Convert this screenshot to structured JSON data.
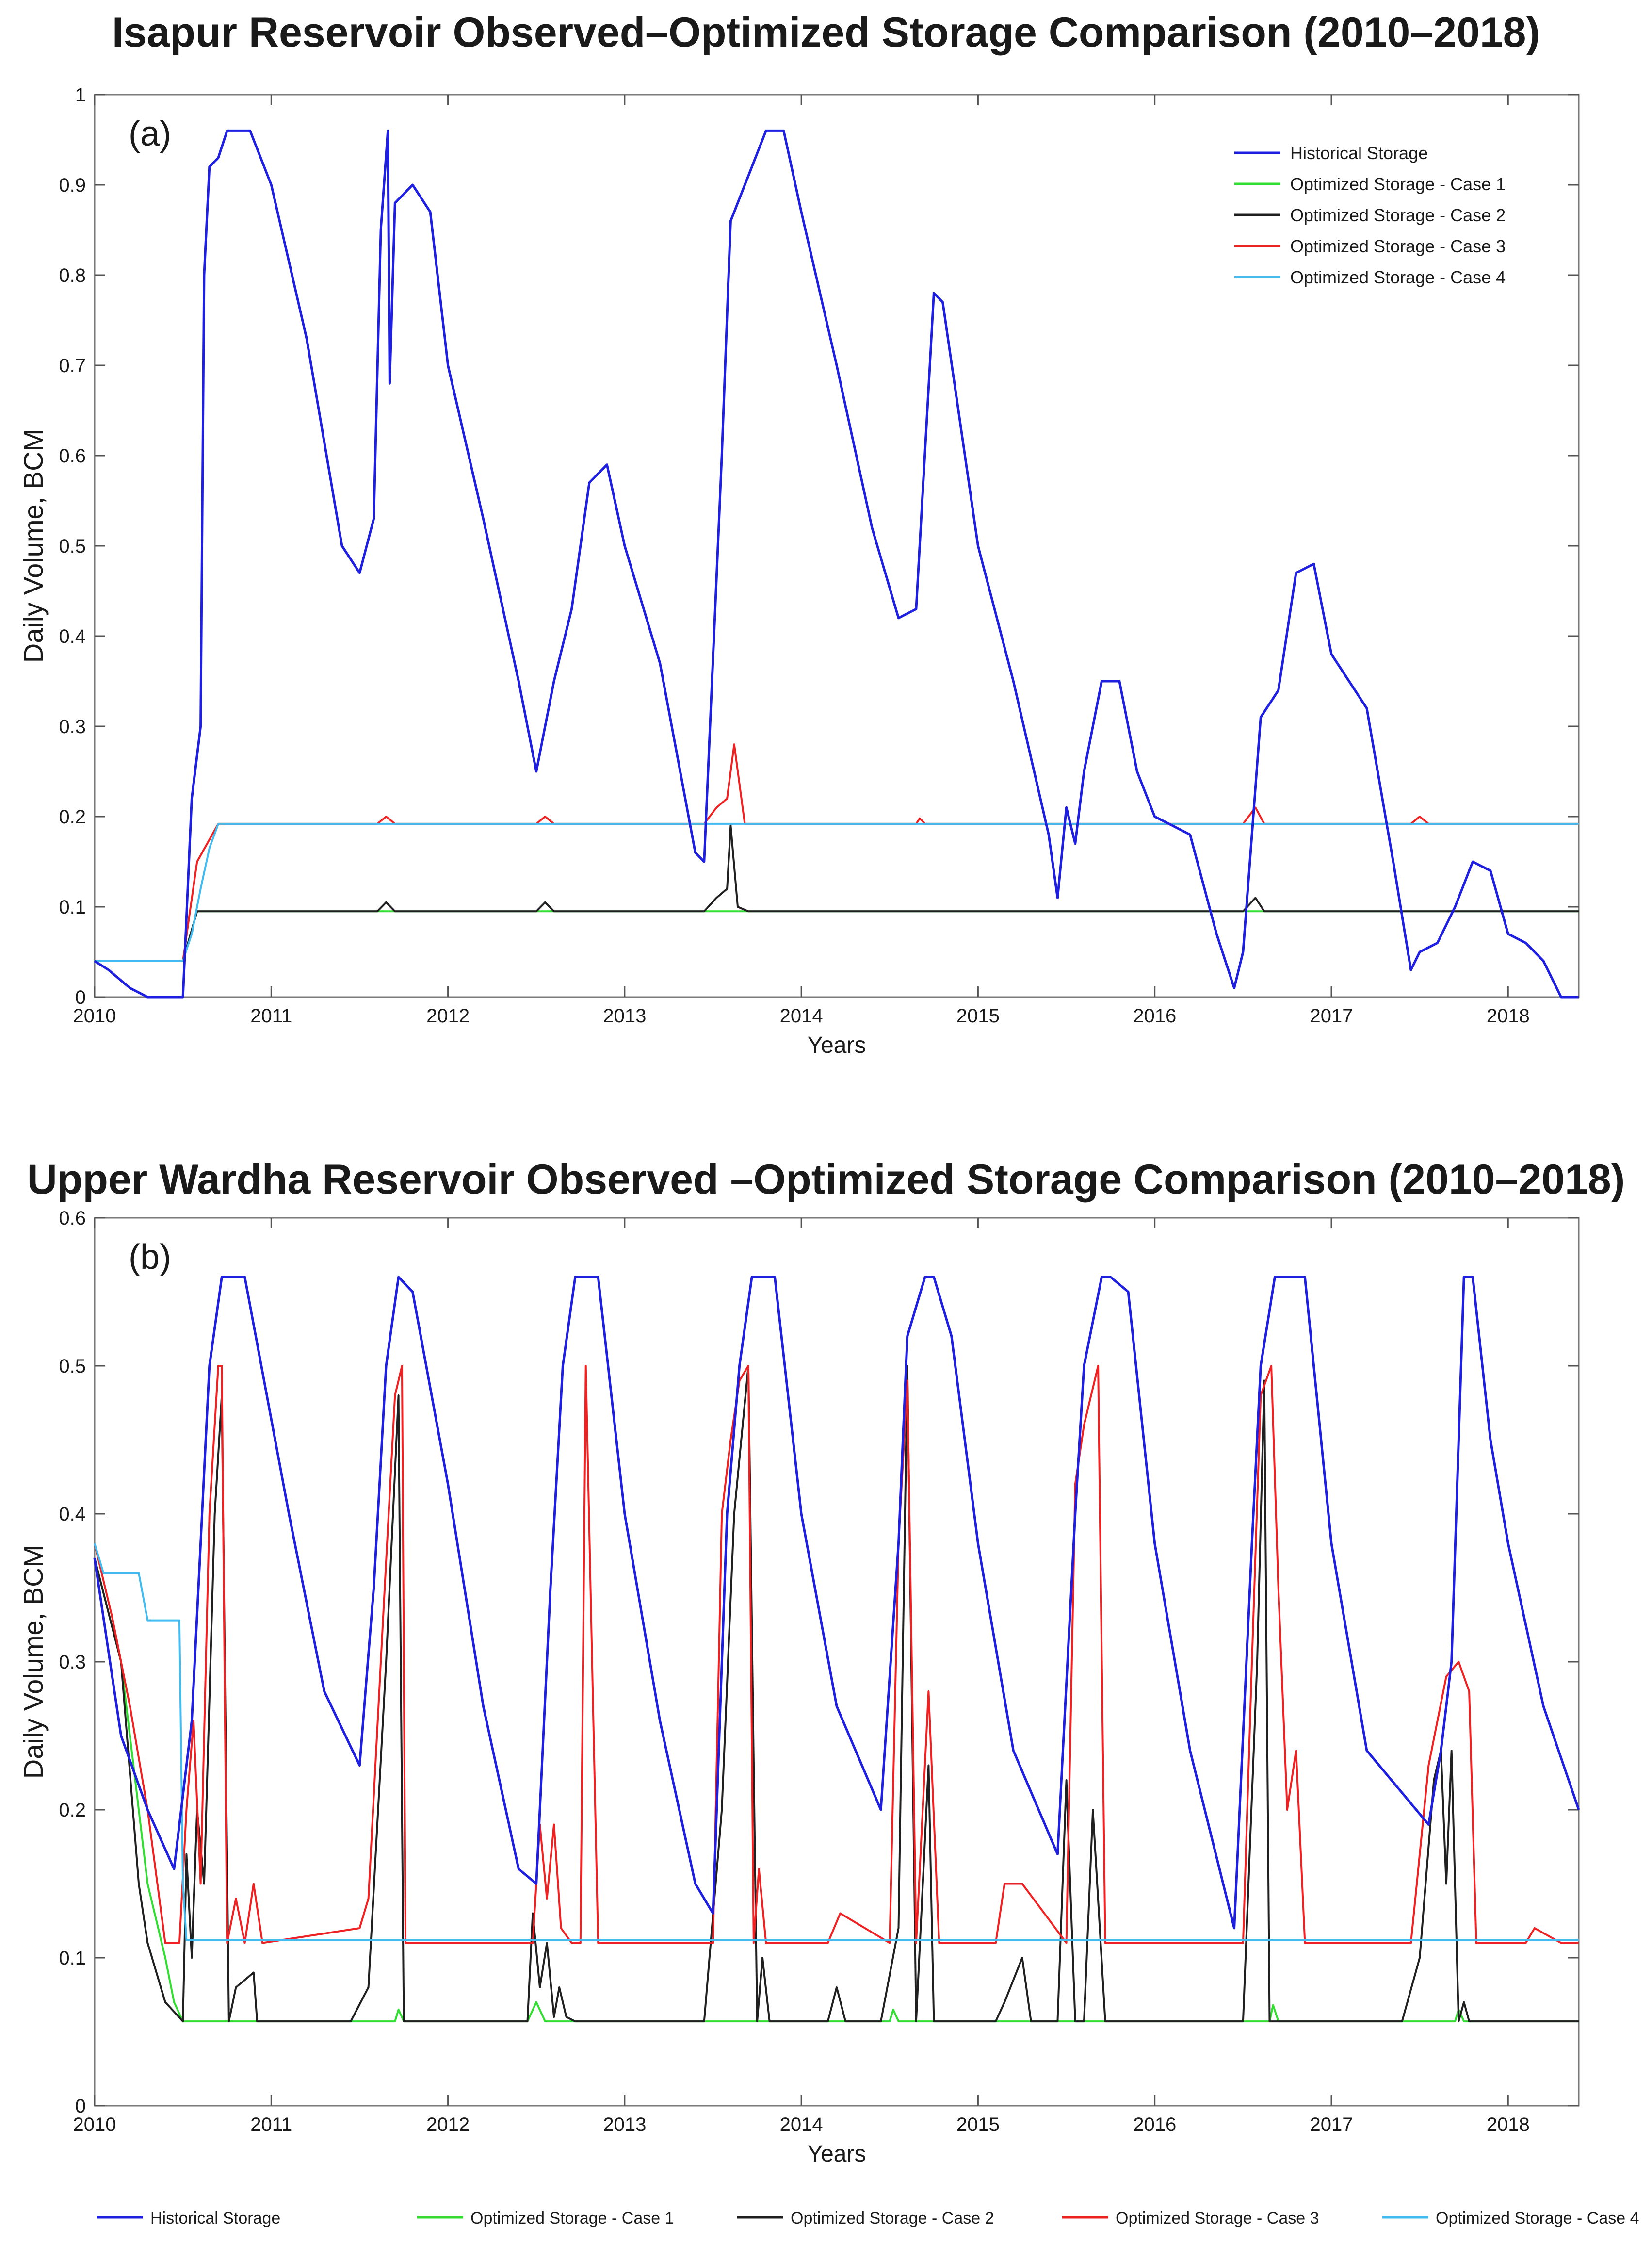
{
  "chart_data": [
    {
      "type": "line",
      "title": "Isapur Reservoir Observed–Optimized Storage Comparison (2010–2018)",
      "panel_label": "(a)",
      "xlabel": "Years",
      "ylabel": "Daily Volume, BCM",
      "xlim": [
        2010,
        2018.4
      ],
      "ylim": [
        0,
        1
      ],
      "xticks": [
        "2010",
        "2011",
        "2012",
        "2013",
        "2014",
        "2015",
        "2016",
        "2017",
        "2018"
      ],
      "yticks": [
        "0",
        "0.1",
        "0.2",
        "0.3",
        "0.4",
        "0.5",
        "0.6",
        "0.7",
        "0.8",
        "0.9",
        "1"
      ],
      "legend_placement": "top-right",
      "series": [
        {
          "name": "Historical Storage",
          "color": "#1f1fe0",
          "x": [
            2010,
            2010.08,
            2010.2,
            2010.3,
            2010.38,
            2010.5,
            2010.55,
            2010.6,
            2010.62,
            2010.65,
            2010.7,
            2010.75,
            2010.88,
            2011.0,
            2011.2,
            2011.4,
            2011.5,
            2011.58,
            2011.62,
            2011.66,
            2011.67,
            2011.7,
            2011.8,
            2011.9,
            2012.0,
            2012.2,
            2012.4,
            2012.5,
            2012.6,
            2012.7,
            2012.8,
            2012.9,
            2013.0,
            2013.2,
            2013.4,
            2013.45,
            2013.55,
            2013.6,
            2013.7,
            2013.8,
            2013.9,
            2014.0,
            2014.2,
            2014.4,
            2014.55,
            2014.65,
            2014.75,
            2014.8,
            2015.0,
            2015.2,
            2015.4,
            2015.45,
            2015.5,
            2015.55,
            2015.6,
            2015.7,
            2015.8,
            2015.9,
            2016.0,
            2016.2,
            2016.35,
            2016.45,
            2016.5,
            2016.6,
            2016.7,
            2016.8,
            2016.9,
            2017.0,
            2017.2,
            2017.35,
            2017.45,
            2017.5,
            2017.6,
            2017.7,
            2017.8,
            2017.9,
            2018.0,
            2018.1,
            2018.2,
            2018.3,
            2018.4
          ],
          "y": [
            0.04,
            0.03,
            0.01,
            0.0,
            0.0,
            0.0,
            0.22,
            0.3,
            0.8,
            0.92,
            0.93,
            0.96,
            0.96,
            0.9,
            0.73,
            0.5,
            0.47,
            0.53,
            0.85,
            0.96,
            0.68,
            0.88,
            0.9,
            0.87,
            0.7,
            0.53,
            0.35,
            0.25,
            0.35,
            0.43,
            0.57,
            0.59,
            0.5,
            0.37,
            0.16,
            0.15,
            0.6,
            0.86,
            0.91,
            0.96,
            0.96,
            0.87,
            0.7,
            0.52,
            0.42,
            0.43,
            0.78,
            0.77,
            0.5,
            0.35,
            0.18,
            0.11,
            0.21,
            0.17,
            0.25,
            0.35,
            0.35,
            0.25,
            0.2,
            0.18,
            0.07,
            0.01,
            0.05,
            0.31,
            0.34,
            0.47,
            0.48,
            0.38,
            0.32,
            0.15,
            0.03,
            0.05,
            0.06,
            0.1,
            0.15,
            0.14,
            0.07,
            0.06,
            0.04,
            0.0,
            0.0
          ]
        },
        {
          "name": "Optimized Storage - Case 1",
          "color": "#33dd33",
          "x": [
            2010,
            2010.5,
            2010.58,
            2018.4
          ],
          "y": [
            0.04,
            0.04,
            0.095,
            0.095
          ]
        },
        {
          "name": "Optimized Storage - Case 2",
          "color": "#202020",
          "x": [
            2010,
            2010.5,
            2010.58,
            2011.6,
            2011.65,
            2011.7,
            2012.5,
            2012.55,
            2012.6,
            2013.45,
            2013.52,
            2013.58,
            2013.6,
            2013.64,
            2013.7,
            2016.5,
            2016.57,
            2016.62,
            2018.4
          ],
          "y": [
            0.04,
            0.04,
            0.095,
            0.095,
            0.105,
            0.095,
            0.095,
            0.105,
            0.095,
            0.095,
            0.11,
            0.12,
            0.19,
            0.1,
            0.095,
            0.095,
            0.11,
            0.095,
            0.095
          ]
        },
        {
          "name": "Optimized Storage - Case 3",
          "color": "#ee2222",
          "x": [
            2010,
            2010.5,
            2010.58,
            2010.7,
            2011.6,
            2011.65,
            2011.7,
            2012.5,
            2012.55,
            2012.6,
            2013.45,
            2013.52,
            2013.58,
            2013.62,
            2013.68,
            2014.65,
            2014.67,
            2014.7,
            2016.5,
            2016.57,
            2016.62,
            2017.45,
            2017.5,
            2017.55,
            2018.4
          ],
          "y": [
            0.04,
            0.04,
            0.15,
            0.192,
            0.192,
            0.2,
            0.192,
            0.192,
            0.2,
            0.192,
            0.192,
            0.21,
            0.22,
            0.28,
            0.192,
            0.192,
            0.198,
            0.192,
            0.192,
            0.21,
            0.192,
            0.192,
            0.2,
            0.192,
            0.192
          ]
        },
        {
          "name": "Optimized Storage - Case 4",
          "color": "#44bbee",
          "x": [
            2010,
            2010.5,
            2010.55,
            2010.6,
            2010.65,
            2010.7,
            2018.4
          ],
          "y": [
            0.04,
            0.04,
            0.07,
            0.12,
            0.165,
            0.192,
            0.192
          ]
        }
      ]
    },
    {
      "type": "line",
      "title": "Upper Wardha Reservoir Observed –Optimized  Storage Comparison (2010–2018)",
      "panel_label": "(b)",
      "xlabel": "Years",
      "ylabel": "Daily Volume, BCM",
      "xlim": [
        2010,
        2018.4
      ],
      "ylim": [
        0,
        0.6
      ],
      "xticks": [
        "2010",
        "2011",
        "2012",
        "2013",
        "2014",
        "2015",
        "2016",
        "2017",
        "2018"
      ],
      "yticks": [
        "0",
        "0.1",
        "0.2",
        "0.3",
        "0.4",
        "0.5",
        "0.6"
      ],
      "legend_placement": "bottom",
      "series": [
        {
          "name": "Historical Storage",
          "color": "#1f1fe0",
          "x": [
            2010,
            2010.15,
            2010.3,
            2010.45,
            2010.55,
            2010.65,
            2010.72,
            2010.85,
            2011.1,
            2011.3,
            2011.5,
            2011.58,
            2011.65,
            2011.72,
            2011.8,
            2012.0,
            2012.2,
            2012.4,
            2012.5,
            2012.58,
            2012.65,
            2012.72,
            2012.85,
            2013.0,
            2013.2,
            2013.4,
            2013.5,
            2013.58,
            2013.65,
            2013.72,
            2013.85,
            2014.0,
            2014.2,
            2014.45,
            2014.55,
            2014.6,
            2014.7,
            2014.75,
            2014.85,
            2015.0,
            2015.2,
            2015.45,
            2015.55,
            2015.6,
            2015.7,
            2015.75,
            2015.85,
            2016.0,
            2016.2,
            2016.45,
            2016.55,
            2016.6,
            2016.68,
            2016.72,
            2016.85,
            2017.0,
            2017.2,
            2017.55,
            2017.62,
            2017.68,
            2017.75,
            2017.8,
            2017.9,
            2018.0,
            2018.2,
            2018.4
          ],
          "y": [
            0.37,
            0.25,
            0.2,
            0.16,
            0.26,
            0.5,
            0.56,
            0.56,
            0.4,
            0.28,
            0.23,
            0.35,
            0.5,
            0.56,
            0.55,
            0.42,
            0.27,
            0.16,
            0.15,
            0.35,
            0.5,
            0.56,
            0.56,
            0.4,
            0.26,
            0.15,
            0.13,
            0.4,
            0.5,
            0.56,
            0.56,
            0.4,
            0.27,
            0.2,
            0.38,
            0.52,
            0.56,
            0.56,
            0.52,
            0.38,
            0.24,
            0.17,
            0.4,
            0.5,
            0.56,
            0.56,
            0.55,
            0.38,
            0.24,
            0.12,
            0.38,
            0.5,
            0.56,
            0.56,
            0.56,
            0.38,
            0.24,
            0.19,
            0.24,
            0.3,
            0.56,
            0.56,
            0.45,
            0.38,
            0.27,
            0.2
          ]
        },
        {
          "name": "Optimized Storage - Case 1",
          "color": "#33dd33",
          "x": [
            2010,
            2010.15,
            2010.3,
            2010.4,
            2010.45,
            2010.5,
            2010.55,
            2011.7,
            2011.72,
            2011.75,
            2012.45,
            2012.5,
            2012.55,
            2014.5,
            2014.52,
            2014.55,
            2016.65,
            2016.67,
            2016.7,
            2017.7,
            2017.72,
            2017.75,
            2018.4
          ],
          "y": [
            0.37,
            0.3,
            0.15,
            0.1,
            0.07,
            0.057,
            0.057,
            0.057,
            0.065,
            0.057,
            0.057,
            0.07,
            0.057,
            0.057,
            0.065,
            0.057,
            0.057,
            0.068,
            0.057,
            0.057,
            0.065,
            0.057,
            0.057
          ]
        },
        {
          "name": "Optimized Storage - Case 2",
          "color": "#202020",
          "x": [
            2010,
            2010.15,
            2010.25,
            2010.3,
            2010.4,
            2010.5,
            2010.52,
            2010.55,
            2010.58,
            2010.62,
            2010.68,
            2010.72,
            2010.76,
            2010.8,
            2010.9,
            2010.92,
            2011.45,
            2011.55,
            2011.65,
            2011.72,
            2011.75,
            2011.8,
            2012.45,
            2012.48,
            2012.52,
            2012.56,
            2012.6,
            2012.63,
            2012.67,
            2012.72,
            2012.78,
            2013.45,
            2013.55,
            2013.62,
            2013.7,
            2013.75,
            2013.78,
            2013.82,
            2014.15,
            2014.2,
            2014.25,
            2014.45,
            2014.55,
            2014.6,
            2014.65,
            2014.72,
            2014.75,
            2014.8,
            2015.1,
            2015.15,
            2015.25,
            2015.3,
            2015.45,
            2015.5,
            2015.55,
            2015.6,
            2015.65,
            2015.72,
            2015.78,
            2016.5,
            2016.58,
            2016.62,
            2016.65,
            2016.7,
            2017.4,
            2017.5,
            2017.58,
            2017.62,
            2017.65,
            2017.68,
            2017.72,
            2017.75,
            2017.78,
            2017.82,
            2018.4
          ],
          "y": [
            0.37,
            0.3,
            0.15,
            0.11,
            0.07,
            0.057,
            0.17,
            0.1,
            0.2,
            0.15,
            0.4,
            0.48,
            0.057,
            0.08,
            0.09,
            0.057,
            0.057,
            0.08,
            0.3,
            0.48,
            0.057,
            0.057,
            0.057,
            0.13,
            0.08,
            0.11,
            0.06,
            0.08,
            0.06,
            0.057,
            0.057,
            0.057,
            0.2,
            0.4,
            0.5,
            0.057,
            0.1,
            0.057,
            0.057,
            0.08,
            0.057,
            0.057,
            0.12,
            0.5,
            0.057,
            0.23,
            0.057,
            0.057,
            0.057,
            0.07,
            0.1,
            0.057,
            0.057,
            0.22,
            0.057,
            0.057,
            0.2,
            0.057,
            0.057,
            0.057,
            0.3,
            0.49,
            0.057,
            0.057,
            0.057,
            0.1,
            0.22,
            0.24,
            0.15,
            0.24,
            0.057,
            0.07,
            0.057,
            0.057,
            0.057
          ]
        },
        {
          "name": "Optimized Storage - Case 3",
          "color": "#ee2222",
          "x": [
            2010,
            2010.1,
            2010.2,
            2010.3,
            2010.4,
            2010.48,
            2010.52,
            2010.56,
            2010.6,
            2010.65,
            2010.7,
            2010.72,
            2010.75,
            2010.8,
            2010.85,
            2010.9,
            2010.95,
            2011.5,
            2011.55,
            2011.62,
            2011.7,
            2011.74,
            2011.76,
            2011.8,
            2012.48,
            2012.52,
            2012.56,
            2012.6,
            2012.64,
            2012.7,
            2012.75,
            2012.78,
            2012.85,
            2013.5,
            2013.55,
            2013.6,
            2013.65,
            2013.7,
            2013.73,
            2013.76,
            2013.8,
            2013.88,
            2014.15,
            2014.22,
            2014.5,
            2014.55,
            2014.6,
            2014.65,
            2014.72,
            2014.78,
            2014.85,
            2015.1,
            2015.15,
            2015.25,
            2015.5,
            2015.55,
            2015.6,
            2015.68,
            2015.72,
            2015.76,
            2015.8,
            2016.5,
            2016.55,
            2016.6,
            2016.66,
            2016.7,
            2016.75,
            2016.8,
            2016.85,
            2017.45,
            2017.55,
            2017.65,
            2017.72,
            2017.78,
            2017.82,
            2017.9,
            2018.1,
            2018.15,
            2018.3,
            2018.4
          ],
          "y": [
            0.38,
            0.33,
            0.27,
            0.2,
            0.11,
            0.11,
            0.2,
            0.26,
            0.15,
            0.4,
            0.5,
            0.5,
            0.11,
            0.14,
            0.11,
            0.15,
            0.11,
            0.12,
            0.14,
            0.3,
            0.48,
            0.5,
            0.11,
            0.11,
            0.11,
            0.19,
            0.14,
            0.19,
            0.12,
            0.11,
            0.11,
            0.5,
            0.11,
            0.11,
            0.4,
            0.45,
            0.49,
            0.5,
            0.11,
            0.16,
            0.11,
            0.11,
            0.11,
            0.13,
            0.11,
            0.38,
            0.49,
            0.11,
            0.28,
            0.11,
            0.11,
            0.11,
            0.15,
            0.15,
            0.11,
            0.42,
            0.46,
            0.5,
            0.11,
            0.11,
            0.11,
            0.11,
            0.3,
            0.48,
            0.5,
            0.35,
            0.2,
            0.24,
            0.11,
            0.11,
            0.23,
            0.29,
            0.3,
            0.28,
            0.11,
            0.11,
            0.11,
            0.12,
            0.11,
            0.11
          ]
        },
        {
          "name": "Optimized Storage - Case 4",
          "color": "#44bbee",
          "x": [
            2010,
            2010.05,
            2010.25,
            2010.3,
            2010.48,
            2010.5,
            2010.52,
            2018.4
          ],
          "y": [
            0.38,
            0.36,
            0.36,
            0.328,
            0.328,
            0.15,
            0.112,
            0.112
          ]
        }
      ]
    }
  ]
}
